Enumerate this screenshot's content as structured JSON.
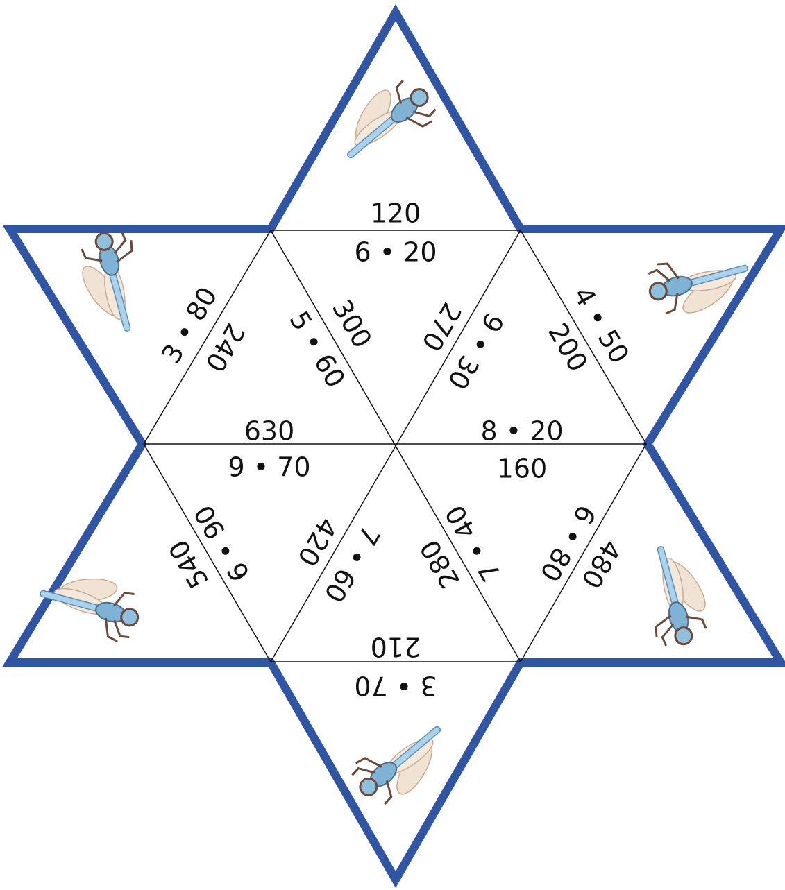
{
  "puzzle": {
    "edges": [
      {
        "labels": [
          "120",
          "6 • 20"
        ]
      },
      {
        "labels": [
          "3 • 80",
          "240"
        ]
      },
      {
        "labels": [
          "5 • 60",
          "300"
        ]
      },
      {
        "labels": [
          "9 • 30",
          "270"
        ]
      },
      {
        "labels": [
          "4 • 50",
          "200"
        ]
      },
      {
        "labels": [
          "8 • 20",
          "160"
        ]
      },
      {
        "labels": [
          "630",
          "9 • 70"
        ]
      },
      {
        "labels": [
          "6 • 90",
          "540"
        ]
      },
      {
        "labels": [
          "7 • 60",
          "420"
        ]
      },
      {
        "labels": [
          "7 • 40",
          "280"
        ]
      },
      {
        "labels": [
          "6 • 80",
          "480"
        ]
      },
      {
        "labels": [
          "210",
          "3 • 70"
        ]
      }
    ]
  }
}
